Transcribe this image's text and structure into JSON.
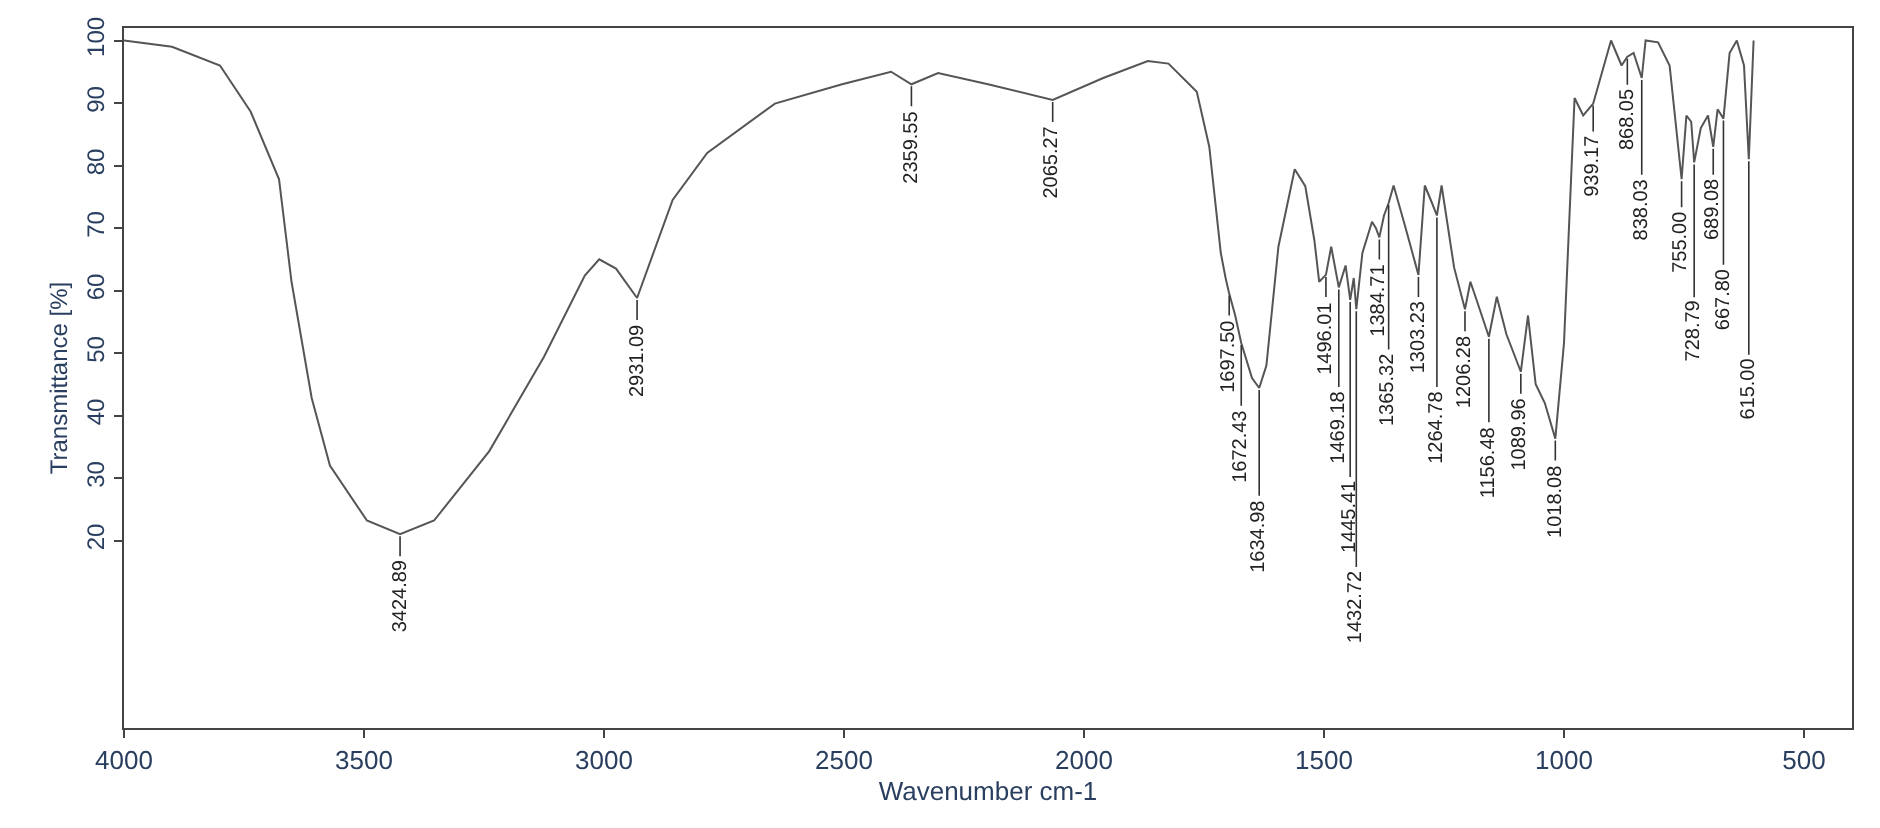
{
  "chart_data": {
    "type": "line",
    "xlabel": "Wavenumber cm-1",
    "ylabel": "Transmittance [%]",
    "xlim": [
      4000,
      400
    ],
    "xticks": [
      4000,
      3500,
      3000,
      2500,
      2000,
      1500,
      1000,
      500
    ],
    "ylim": [
      -10,
      102
    ],
    "yticks": [
      20,
      30,
      40,
      50,
      60,
      70,
      80,
      90,
      100
    ],
    "marker": "none",
    "line_style": "solid",
    "series": [
      {
        "color": "#555555",
        "x": [
          4000,
          3900,
          3800,
          3736,
          3677,
          3651,
          3609,
          3571,
          3494,
          3424.89,
          3354,
          3239,
          3125,
          3040,
          3010,
          2975,
          2931.09,
          2857,
          2785,
          2644,
          2504,
          2402,
          2359.55,
          2304,
          2200,
          2065.27,
          1960,
          1867,
          1824,
          1765,
          1739,
          1715,
          1705,
          1697.5,
          1685,
          1672.43,
          1650,
          1634.98,
          1620,
          1595,
          1561,
          1539,
          1520,
          1510,
          1496.01,
          1485,
          1469.18,
          1455,
          1445.41,
          1438,
          1432.72,
          1420,
          1400,
          1392,
          1384.71,
          1375,
          1365.32,
          1355,
          1330,
          1303.23,
          1290,
          1275,
          1264.78,
          1255,
          1229,
          1206.28,
          1195,
          1180,
          1156.48,
          1140,
          1120,
          1089.96,
          1075,
          1059,
          1040,
          1018.08,
          1000,
          978,
          960,
          939.17,
          902,
          880,
          868.05,
          855,
          838.03,
          830,
          804,
          780,
          755,
          745,
          735,
          728.79,
          715,
          700,
          689.08,
          680,
          667.8,
          655,
          640,
          625,
          615,
          605
        ],
        "values": [
          100,
          99,
          96,
          88.6,
          77.8,
          61.4,
          42.8,
          32,
          23.2,
          21,
          23.2,
          34.3,
          49.4,
          62.4,
          65,
          63.5,
          58.8,
          74.5,
          82,
          89.9,
          93,
          95,
          93,
          94.8,
          93,
          90.5,
          94,
          96.7,
          96.3,
          91.8,
          83,
          66,
          62,
          59.5,
          56,
          51.6,
          46,
          44.4,
          48,
          67,
          79.4,
          76.7,
          68,
          61.4,
          62.5,
          67,
          60.5,
          64,
          58.5,
          62,
          57,
          66,
          71,
          70,
          68.5,
          72,
          74,
          76.8,
          70,
          62.5,
          76.8,
          74,
          72,
          76.8,
          63.7,
          57,
          61.4,
          58,
          52.6,
          59,
          53,
          47,
          56,
          45,
          42,
          36.3,
          51.6,
          90.8,
          88,
          89.9,
          100,
          96,
          97.4,
          98,
          94,
          100,
          99.7,
          96,
          77.8,
          88,
          87,
          80.5,
          86,
          88,
          83,
          89,
          87.5,
          98,
          100,
          96,
          81,
          100
        ]
      }
    ],
    "annotations": [
      {
        "text": "3424.89",
        "x": 3424.89,
        "y": 21
      },
      {
        "text": "2931.09",
        "x": 2931.09,
        "y": 58.8
      },
      {
        "text": "2359.55",
        "x": 2359.55,
        "y": 93
      },
      {
        "text": "2065.27",
        "x": 2065.27,
        "y": 90.5
      },
      {
        "text": "1697.50",
        "x": 1697.5,
        "y": 59.5
      },
      {
        "text": "1672.43",
        "x": 1672.43,
        "y": 51.6
      },
      {
        "text": "1634.98",
        "x": 1634.98,
        "y": 44.4
      },
      {
        "text": "1496.01",
        "x": 1496.01,
        "y": 62.5
      },
      {
        "text": "1469.18",
        "x": 1469.18,
        "y": 60.5
      },
      {
        "text": "1445.41",
        "x": 1445.41,
        "y": 58.5
      },
      {
        "text": "1432.72",
        "x": 1432.72,
        "y": 57
      },
      {
        "text": "1384.71",
        "x": 1384.71,
        "y": 68.5
      },
      {
        "text": "1365.32",
        "x": 1365.32,
        "y": 74
      },
      {
        "text": "1303.23",
        "x": 1303.23,
        "y": 62.5
      },
      {
        "text": "1264.78",
        "x": 1264.78,
        "y": 72
      },
      {
        "text": "1206.28",
        "x": 1206.28,
        "y": 57
      },
      {
        "text": "1156.48",
        "x": 1156.48,
        "y": 52.6
      },
      {
        "text": "1089.96",
        "x": 1089.96,
        "y": 47
      },
      {
        "text": "1018.08",
        "x": 1018.08,
        "y": 36.3
      },
      {
        "text": "939.17",
        "x": 939.17,
        "y": 89.9
      },
      {
        "text": "868.05",
        "x": 868.05,
        "y": 97.4
      },
      {
        "text": "838.03",
        "x": 838.03,
        "y": 94
      },
      {
        "text": "755.00",
        "x": 755,
        "y": 77.8
      },
      {
        "text": "728.79",
        "x": 728.79,
        "y": 80.5
      },
      {
        "text": "689.08",
        "x": 689.08,
        "y": 83
      },
      {
        "text": "667.80",
        "x": 667.8,
        "y": 87.5
      },
      {
        "text": "615.00",
        "x": 615,
        "y": 81
      }
    ]
  }
}
